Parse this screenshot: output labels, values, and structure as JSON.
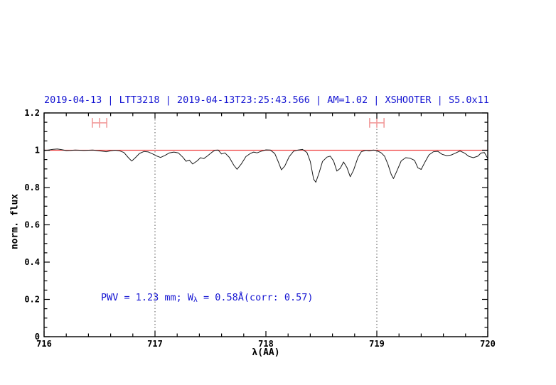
{
  "title": {
    "text": "2019-04-13 | LTT3218 | 2019-04-13T23:25:43.566 | AM=1.02 | XSHOOTER | S5.0x11",
    "color": "#1414d2"
  },
  "annotation": {
    "prefix": "PWV = 1.23 mm; W",
    "subscript": "λ",
    "suffix": " = 0.58Å(corr: 0.57)",
    "color": "#1414d2"
  },
  "chart_data": {
    "type": "line",
    "title": "2019-04-13 | LTT3218 | 2019-04-13T23:25:43.566 | AM=1.02 | XSHOOTER | S5.0x11",
    "xlabel": "λ(AA)",
    "ylabel": "norm. flux",
    "xlim": [
      716,
      720
    ],
    "ylim": [
      0,
      1.2
    ],
    "grid": false,
    "x_ticks": [
      {
        "v": 716,
        "label": "716"
      },
      {
        "v": 717,
        "label": "717"
      },
      {
        "v": 718,
        "label": "718"
      },
      {
        "v": 719,
        "label": "719"
      },
      {
        "v": 720,
        "label": "720"
      }
    ],
    "x_minor_step": 0.2,
    "y_ticks": [
      {
        "v": 0,
        "label": "0"
      },
      {
        "v": 0.2,
        "label": "0.2"
      },
      {
        "v": 0.4,
        "label": "0.4"
      },
      {
        "v": 0.6,
        "label": "0.6"
      },
      {
        "v": 0.8,
        "label": "0.8"
      },
      {
        "v": 1,
        "label": "1"
      },
      {
        "v": 1.2,
        "label": "1.2"
      }
    ],
    "y_minor_step": 0.05,
    "frame_color": "#000000",
    "reference_line": {
      "flux": 1.0,
      "color": "#f04444"
    },
    "dotted_vlines": {
      "x": [
        717,
        719
      ],
      "color": "#555555"
    },
    "range_markers": {
      "color": "#f29b9b",
      "flux": 1.147,
      "cap_half_height_flux": 0.026,
      "items": [
        {
          "center": 716.5,
          "half_width": 0.065
        },
        {
          "center": 719.0,
          "half_width": 0.065
        }
      ]
    },
    "series": [
      {
        "name": "normalized-spectrum",
        "color": "#1a1a1a",
        "points": [
          [
            716.0,
            0.998
          ],
          [
            716.04,
            1.001
          ],
          [
            716.08,
            1.005
          ],
          [
            716.12,
            1.007
          ],
          [
            716.16,
            1.003
          ],
          [
            716.2,
            0.998
          ],
          [
            716.24,
            0.999
          ],
          [
            716.28,
            1.001
          ],
          [
            716.32,
            1.0
          ],
          [
            716.36,
            0.999
          ],
          [
            716.4,
            1.0
          ],
          [
            716.44,
            1.001
          ],
          [
            716.48,
            0.998
          ],
          [
            716.52,
            0.995
          ],
          [
            716.56,
            0.992
          ],
          [
            716.6,
            0.997
          ],
          [
            716.64,
            1.0
          ],
          [
            716.68,
            0.997
          ],
          [
            716.72,
            0.988
          ],
          [
            716.76,
            0.96
          ],
          [
            716.79,
            0.942
          ],
          [
            716.82,
            0.958
          ],
          [
            716.86,
            0.983
          ],
          [
            716.9,
            0.993
          ],
          [
            716.94,
            0.991
          ],
          [
            716.98,
            0.98
          ],
          [
            717.02,
            0.968
          ],
          [
            717.05,
            0.961
          ],
          [
            717.09,
            0.972
          ],
          [
            717.13,
            0.986
          ],
          [
            717.17,
            0.99
          ],
          [
            717.21,
            0.986
          ],
          [
            717.25,
            0.963
          ],
          [
            717.28,
            0.941
          ],
          [
            717.31,
            0.947
          ],
          [
            717.34,
            0.926
          ],
          [
            717.38,
            0.943
          ],
          [
            717.41,
            0.96
          ],
          [
            717.44,
            0.955
          ],
          [
            717.47,
            0.968
          ],
          [
            717.51,
            0.988
          ],
          [
            717.54,
            1.0
          ],
          [
            717.57,
            1.001
          ],
          [
            717.6,
            0.98
          ],
          [
            717.63,
            0.986
          ],
          [
            717.67,
            0.962
          ],
          [
            717.71,
            0.92
          ],
          [
            717.74,
            0.898
          ],
          [
            717.78,
            0.928
          ],
          [
            717.82,
            0.966
          ],
          [
            717.86,
            0.983
          ],
          [
            717.89,
            0.99
          ],
          [
            717.92,
            0.986
          ],
          [
            717.96,
            0.995
          ],
          [
            718.0,
            1.002
          ],
          [
            718.04,
            1.001
          ],
          [
            718.08,
            0.982
          ],
          [
            718.11,
            0.94
          ],
          [
            718.14,
            0.895
          ],
          [
            718.17,
            0.915
          ],
          [
            718.21,
            0.966
          ],
          [
            718.25,
            0.995
          ],
          [
            718.29,
            1.001
          ],
          [
            718.33,
            1.004
          ],
          [
            718.37,
            0.988
          ],
          [
            718.4,
            0.94
          ],
          [
            718.43,
            0.845
          ],
          [
            718.45,
            0.828
          ],
          [
            718.48,
            0.88
          ],
          [
            718.51,
            0.94
          ],
          [
            718.55,
            0.963
          ],
          [
            718.58,
            0.968
          ],
          [
            718.61,
            0.942
          ],
          [
            718.64,
            0.888
          ],
          [
            718.67,
            0.903
          ],
          [
            718.7,
            0.937
          ],
          [
            718.73,
            0.908
          ],
          [
            718.76,
            0.858
          ],
          [
            718.79,
            0.892
          ],
          [
            718.83,
            0.962
          ],
          [
            718.86,
            0.992
          ],
          [
            718.9,
            1.0
          ],
          [
            718.93,
            0.997
          ],
          [
            718.97,
            1.001
          ],
          [
            719.0,
            0.998
          ],
          [
            719.04,
            0.986
          ],
          [
            719.07,
            0.968
          ],
          [
            719.1,
            0.925
          ],
          [
            719.13,
            0.87
          ],
          [
            719.15,
            0.848
          ],
          [
            719.18,
            0.888
          ],
          [
            719.22,
            0.943
          ],
          [
            719.26,
            0.96
          ],
          [
            719.3,
            0.957
          ],
          [
            719.34,
            0.946
          ],
          [
            719.37,
            0.906
          ],
          [
            719.4,
            0.897
          ],
          [
            719.43,
            0.932
          ],
          [
            719.47,
            0.975
          ],
          [
            719.51,
            0.992
          ],
          [
            719.55,
            0.994
          ],
          [
            719.59,
            0.978
          ],
          [
            719.63,
            0.971
          ],
          [
            719.67,
            0.974
          ],
          [
            719.71,
            0.985
          ],
          [
            719.75,
            0.996
          ],
          [
            719.79,
            0.985
          ],
          [
            719.83,
            0.967
          ],
          [
            719.87,
            0.96
          ],
          [
            719.91,
            0.968
          ],
          [
            719.94,
            0.985
          ],
          [
            719.97,
            0.988
          ],
          [
            720.0,
            0.956
          ]
        ]
      }
    ]
  }
}
